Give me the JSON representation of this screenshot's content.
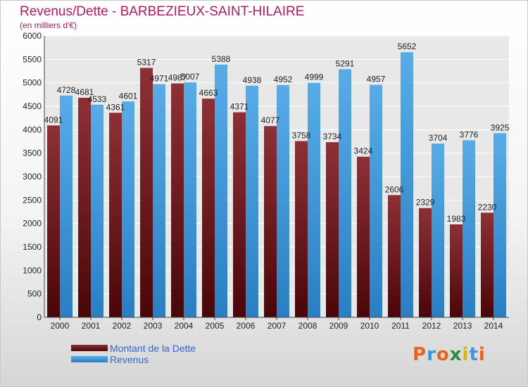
{
  "header": {
    "title": "Revenus/Dette - BARBEZIEUX-SAINT-HILAIRE",
    "subtitle": "(en milliers d'€)"
  },
  "colors": {
    "debt": "#6e1f22",
    "revenue": "#3d97dc",
    "axis_text": "#222222",
    "grid": "#ffffff"
  },
  "logo": {
    "letters": [
      "P",
      "r",
      "o",
      "x",
      "i",
      "t",
      "i"
    ],
    "colors": [
      "#e8641b",
      "#3d97dc",
      "#e8641b",
      "#2e8b3a",
      "#d6b800",
      "#3d97dc",
      "#e8641b"
    ]
  },
  "chart_data": {
    "type": "bar",
    "categories": [
      "2000",
      "2001",
      "2002",
      "2003",
      "2004",
      "2005",
      "2006",
      "2007",
      "2008",
      "2009",
      "2010",
      "2011",
      "2012",
      "2013",
      "2014"
    ],
    "series": [
      {
        "name": "Montant de la Dette",
        "values": [
          4091,
          4681,
          4361,
          5317,
          4987,
          4663,
          4371,
          4077,
          3758,
          3734,
          3424,
          2606,
          2329,
          1983,
          2230
        ],
        "labels": [
          "4091",
          "4681",
          "4361",
          "5317",
          "4987",
          "4663",
          "4371",
          "4077",
          "3758",
          "3734",
          "3424",
          "2606",
          "2329",
          "1983",
          "2230"
        ]
      },
      {
        "name": "Revenus",
        "values": [
          4728,
          4533,
          4601,
          4971,
          5007,
          5388,
          4938,
          4952,
          4999,
          5291,
          4957,
          5652,
          3704,
          3776,
          3925
        ],
        "labels": [
          "4728",
          "4533",
          "4601",
          "4971",
          "5007",
          "5388",
          "4938",
          "4952",
          "4999",
          "5291",
          "4957",
          "5652",
          "3704",
          "3776",
          "3925"
        ]
      }
    ],
    "yticks": [
      0,
      500,
      1000,
      1500,
      2000,
      2500,
      3000,
      3500,
      4000,
      4500,
      5000,
      5500,
      6000
    ],
    "ylim": [
      0,
      6000
    ],
    "grid": true,
    "legend_position": "bottom-left"
  }
}
